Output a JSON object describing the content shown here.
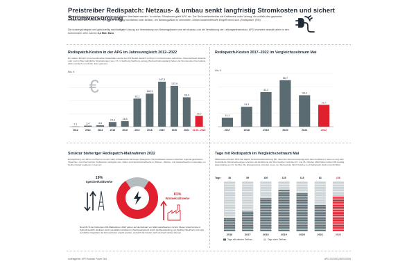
{
  "header": {
    "title": "Preistreiber Redispatch: Netzaus- & umbau senkt langfristig Stromkosten und sichert Stromversorgung",
    "intro_1": "Stromleitungen können aus verschiedenen Gründen überlastet werden. In solchen Situationen greift APG ein. Der Stromnetzbetreiber hat Kraftwerke unter Vertrag, die notfalls den geplanten Kraftwerkseinsatz verändern. Sprich: Die Leistung hochfahren oder senken, um Netzengpässe zu vermeiden. Dieser kostenintensive Eingriff nennt sich „Redispatch\" (RD).",
    "intro_2a": "Die kostengünstigste und gleichzeitig nachhaltigste Lösung zur Vermeidung von Netzengpässen sind der Ausbau und die Verstärkung der Leitungsinfrastruktur. APG investiert deshalb allein in den kommenden zehn Jahren ",
    "intro_2b": "3,1 Mrd. Euro",
    "plug_icon": "plug-icon"
  },
  "chart_data": [
    {
      "type": "bar",
      "title": "Redispatch-Kosten in der APG im Jahresvergleich 2012–2022",
      "description": "Ein starker Einsatz mit konventionellen Kapazitäten wurde den RD-Bedarf deutlich verringern und die Kosten reduzieren. Österreichweit fehlende oder noch in Bau befindliche Stromleitungen wie z. B. in Salzburg (Salzburg-Leitung (Netzverbindungsplan)) haben die Stromkunden hierzulande 2021 mehrfach rund 8 Mio. Euro gekostet.",
      "unit_label": "Mio. €",
      "categories": [
        "2012",
        "2013",
        "2014",
        "2015",
        "2016",
        "2017",
        "2018",
        "2019",
        "2020",
        "2021",
        "01.05.–2022"
      ],
      "values": [
        1.1,
        3.4,
        4.6,
        15.3,
        18.5,
        92.1,
        108.3,
        147.3,
        133.9,
        96.4,
        35.7
      ],
      "value_labels": [
        "1,1",
        "3,4",
        "4,6",
        "15,3",
        "18,5",
        "92,1",
        "108,3",
        "147,3",
        "133,9",
        "96,4",
        "35,7"
      ],
      "highlight_index": 10,
      "ylim": [
        0,
        170
      ],
      "currency_icon": "euro-icon"
    },
    {
      "type": "bar",
      "title": "Redispatch-Kosten 2017–2022 im Vergleichszeitraum Mai",
      "unit_label": "Mio. €",
      "categories": [
        "2017",
        "2018",
        "2019",
        "2020",
        "2021",
        "2022"
      ],
      "values": [
        11.1,
        24.3,
        42.2,
        56.7,
        38.4,
        26.7
      ],
      "value_labels": [
        "11,1",
        "24,3",
        "42,2",
        "56,7",
        "38,4",
        "26,7"
      ],
      "highlight_index": 5,
      "ylim": [
        0,
        65
      ]
    },
    {
      "type": "pie",
      "title": "Struktur bisheriger Redispatch-Maßnahmen 2022",
      "description": "Ermöglichung von Wind- und Sonne ist sehr stark schwankenden Erzeuger-Kategorien. Die Kraftwerke müssen zwischen regional gesicherten (Speicher-) und thermischen Kraftwerken verfügbar sein. Daher sind Speicherkraftwerke in Wasser-, Wärme- und Gaskraftwerken notwendig, um flexibel darauf reagieren zu können.",
      "labels": [
        "Speicherkraftwerke",
        "Wärmekraftwerke"
      ],
      "values": [
        19,
        81
      ],
      "value_labels": [
        "19%",
        "81%"
      ],
      "footnote": "Rund 81 % der bisherigen RD-Maßnahmen 2022 gehen auf den Einsatz von Wärmekraftwerken zurück. Dieser Anteil könnte in Zukunft deutlich niedriger durch verstärkten Ausbau im Übertragungsnetz durch die Bereitstellung von flexiblen Speichern und eine verstärkte Integration der Erneuerbaren ersetzt werden, wodurch die Kosten nach und nach sinken können."
    },
    {
      "type": "bar",
      "title": "Tage mit Redispatch im Vergleichszeitraum Mai",
      "description": "Mittlerweile erfordert APG fast täglich bei Echtzeitbetrachtung RD, damit die Stromversorgung auch dann funktioniert, wenn es eng wird. Kontrollierte Netzerweiterungen ersparen die Einführung der Stromspitzen zwischen 01. und 26. Oktober 2018 hatten bisher RD-Anteilig, gegenwärtig von 01. bis Mai. Die Energiewende schreitet voran, der Netzausbau hinkt hinterher und Redispatch bleibt unverzichtbar.",
      "unit_label": "Tage",
      "categories": [
        "2016",
        "2017",
        "2018",
        "2019",
        "2020",
        "2021",
        "2022"
      ],
      "values": [
        38,
        59,
        100,
        125,
        115,
        82,
        106
      ],
      "value_labels": [
        "38",
        "59",
        "100",
        "125",
        "115",
        "82",
        "106"
      ],
      "days_in_period": 151,
      "highlight_index": 6,
      "legend": [
        "Tage mit aktivem Einfluss",
        "Tage ohne Einfluss"
      ]
    }
  ],
  "footer": {
    "left": "Auftraggeber: APG Austrian Power Grid",
    "right": "APG 2022/05 (05/2022/05)"
  }
}
